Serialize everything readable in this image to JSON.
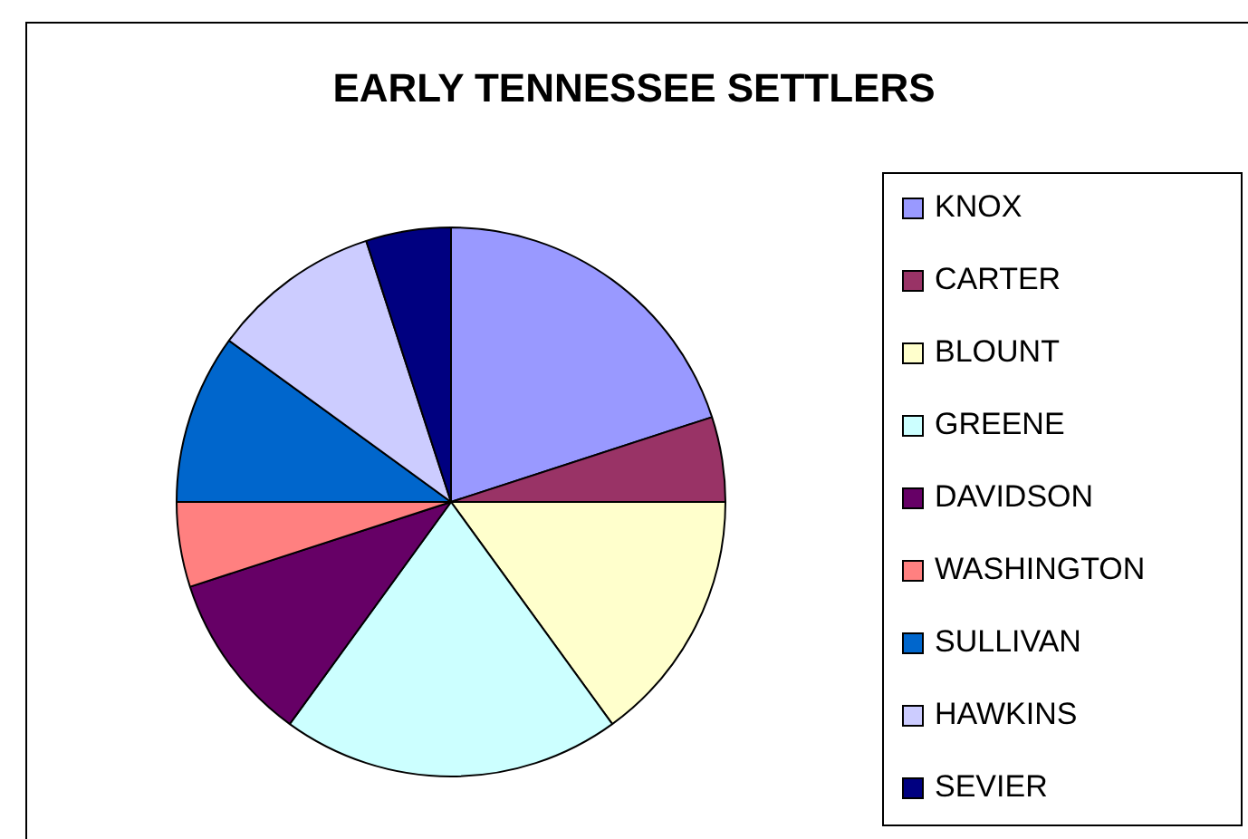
{
  "chart_data": {
    "type": "pie",
    "title": "EARLY TENNESSEE SETTLERS",
    "categories": [
      "KNOX",
      "CARTER",
      "BLOUNT",
      "GREENE",
      "DAVIDSON",
      "WASHINGTON",
      "SULLIVAN",
      "HAWKINS",
      "SEVIER"
    ],
    "values": [
      20,
      5,
      15,
      20,
      10,
      5,
      10,
      10,
      5
    ],
    "colors": [
      "#9999ff",
      "#993366",
      "#ffffcc",
      "#ccffff",
      "#660066",
      "#ff8080",
      "#0066cc",
      "#ccccff",
      "#000080"
    ],
    "legend": "right"
  }
}
